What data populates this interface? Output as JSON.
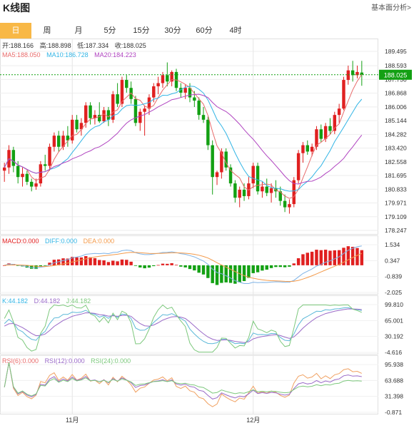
{
  "header": {
    "title": "K线图",
    "link_label": "基本面分析>"
  },
  "tabs": [
    {
      "label": "日",
      "active": true
    },
    {
      "label": "周",
      "active": false
    },
    {
      "label": "月",
      "active": false
    },
    {
      "label": "5分",
      "active": false
    },
    {
      "label": "15分",
      "active": false
    },
    {
      "label": "30分",
      "active": false
    },
    {
      "label": "60分",
      "active": false
    },
    {
      "label": "4时",
      "active": false
    }
  ],
  "ohlc_info": {
    "open_label": "开:",
    "open": "188.166",
    "high_label": "高:",
    "high": "188.898",
    "low_label": "低:",
    "low": "187.334",
    "close_label": "收:",
    "close": "188.025"
  },
  "ma_info": {
    "ma5_label": "MA5:",
    "ma5": "188.050",
    "ma10_label": "MA10:",
    "ma10": "186.728",
    "ma20_label": "MA20:",
    "ma20": "184.223"
  },
  "macd_info": {
    "macd_label": "MACD:",
    "macd": "0.000",
    "diff_label": "DIFF:",
    "diff": "0.000",
    "dea_label": "DEA:",
    "dea": "0.000"
  },
  "kdj_info": {
    "k_label": "K:",
    "k": "44.182",
    "d_label": "D:",
    "d": "44.182",
    "j_label": "J:",
    "j": "44.182"
  },
  "rsi_info": {
    "rsi6_label": "RSI(6):",
    "rsi6": "0.000",
    "rsi12_label": "RSI(12):",
    "rsi12": "0.000",
    "rsi24_label": "RSI(24):",
    "rsi24": "0.000"
  },
  "colors": {
    "up": "#e02020",
    "down": "#13a013",
    "ma5": "#e86a6a",
    "ma10": "#33b5e5",
    "ma20": "#b044c0",
    "macd_diff": "#7fb3e6",
    "macd_dea": "#f39a4a",
    "k": "#5bb8d8",
    "d": "#9a6ac8",
    "j": "#7cc87c",
    "rsi6": "#f0a060",
    "rsi12": "#9a6ac8",
    "rsi24": "#7cc87c",
    "last_price": "#13a013",
    "accent": "#f8b846"
  },
  "chart_data": [
    {
      "type": "candlestick",
      "panel": "price",
      "ylim": [
        178.247,
        189.495
      ],
      "yticks": [
        "189.495",
        "188.593",
        "187.730",
        "186.868",
        "186.006",
        "185.144",
        "184.282",
        "183.420",
        "182.558",
        "181.695",
        "180.833",
        "179.971",
        "179.109",
        "178.247"
      ],
      "xticks": [
        {
          "index": 15,
          "label": "11月"
        },
        {
          "index": 55,
          "label": "12月"
        }
      ],
      "last_price": "188.025",
      "candles": [
        [
          182.0,
          182.5,
          181.3,
          182.2
        ],
        [
          182.2,
          183.6,
          181.8,
          183.3
        ],
        [
          183.3,
          183.5,
          181.9,
          182.3
        ],
        [
          182.3,
          182.6,
          181.2,
          181.6
        ],
        [
          181.6,
          182.2,
          181.0,
          181.8
        ],
        [
          181.8,
          182.0,
          181.1,
          181.3
        ],
        [
          181.3,
          181.5,
          180.7,
          181.0
        ],
        [
          181.0,
          181.5,
          180.8,
          181.2
        ],
        [
          181.2,
          182.6,
          181.0,
          182.4
        ],
        [
          182.4,
          183.0,
          182.0,
          182.3
        ],
        [
          182.3,
          183.7,
          182.0,
          183.5
        ],
        [
          183.5,
          184.4,
          183.2,
          184.2
        ],
        [
          184.2,
          184.5,
          183.2,
          183.5
        ],
        [
          183.5,
          184.5,
          183.3,
          184.2
        ],
        [
          184.2,
          184.8,
          183.5,
          183.9
        ],
        [
          183.9,
          185.5,
          183.7,
          185.2
        ],
        [
          185.2,
          185.5,
          184.4,
          184.6
        ],
        [
          184.6,
          185.3,
          184.2,
          185.0
        ],
        [
          185.0,
          186.3,
          184.7,
          186.1
        ],
        [
          186.1,
          186.3,
          184.9,
          185.3
        ],
        [
          185.3,
          185.8,
          184.9,
          185.5
        ],
        [
          185.5,
          186.3,
          185.0,
          185.1
        ],
        [
          185.1,
          186.0,
          185.0,
          185.8
        ],
        [
          185.8,
          186.0,
          184.8,
          185.2
        ],
        [
          185.2,
          187.0,
          185.0,
          186.8
        ],
        [
          186.8,
          187.5,
          186.0,
          186.2
        ],
        [
          186.2,
          187.9,
          186.0,
          187.7
        ],
        [
          187.7,
          188.0,
          186.9,
          187.2
        ],
        [
          187.2,
          187.6,
          186.2,
          186.5
        ],
        [
          186.5,
          186.7,
          184.8,
          185.0
        ],
        [
          185.0,
          185.9,
          184.5,
          185.7
        ],
        [
          185.7,
          186.1,
          184.2,
          185.9
        ],
        [
          185.9,
          186.8,
          185.5,
          186.6
        ],
        [
          186.6,
          187.5,
          186.3,
          187.3
        ],
        [
          187.3,
          187.9,
          186.8,
          187.5
        ],
        [
          187.5,
          188.2,
          187.2,
          188.0
        ],
        [
          188.0,
          188.8,
          187.3,
          187.6
        ],
        [
          187.6,
          188.3,
          187.3,
          188.2
        ],
        [
          188.2,
          188.4,
          187.0,
          187.2
        ],
        [
          187.2,
          187.5,
          186.6,
          186.9
        ],
        [
          186.9,
          187.4,
          186.5,
          187.2
        ],
        [
          187.2,
          187.5,
          186.3,
          186.6
        ],
        [
          186.6,
          187.0,
          186.0,
          186.4
        ],
        [
          186.4,
          186.6,
          185.2,
          185.5
        ],
        [
          185.5,
          186.0,
          185.0,
          185.2
        ],
        [
          185.2,
          185.4,
          183.3,
          183.6
        ],
        [
          183.6,
          183.9,
          180.5,
          181.6
        ],
        [
          181.6,
          182.0,
          181.1,
          181.9
        ],
        [
          181.9,
          183.4,
          181.5,
          183.2
        ],
        [
          183.2,
          183.4,
          182.0,
          182.2
        ],
        [
          182.2,
          182.4,
          181.0,
          181.2
        ],
        [
          181.2,
          181.4,
          180.0,
          180.3
        ],
        [
          180.3,
          181.0,
          179.7,
          180.8
        ],
        [
          180.8,
          181.2,
          180.1,
          180.4
        ],
        [
          180.4,
          181.6,
          180.2,
          181.2
        ],
        [
          181.2,
          182.5,
          180.9,
          182.3
        ],
        [
          182.3,
          182.5,
          180.5,
          180.7
        ],
        [
          180.7,
          181.3,
          180.3,
          181.0
        ],
        [
          181.0,
          181.5,
          180.4,
          180.6
        ],
        [
          180.6,
          181.2,
          180.0,
          180.9
        ],
        [
          180.9,
          181.4,
          180.3,
          180.7
        ],
        [
          180.7,
          181.0,
          179.8,
          180.1
        ],
        [
          180.1,
          180.5,
          179.4,
          179.7
        ],
        [
          179.7,
          180.2,
          179.3,
          179.9
        ],
        [
          179.9,
          181.6,
          179.7,
          181.4
        ],
        [
          181.4,
          183.3,
          181.2,
          183.1
        ],
        [
          183.1,
          183.8,
          182.5,
          183.6
        ],
        [
          183.6,
          183.9,
          183.0,
          183.2
        ],
        [
          183.2,
          183.7,
          182.9,
          183.5
        ],
        [
          183.5,
          184.8,
          183.3,
          184.6
        ],
        [
          184.6,
          184.9,
          183.8,
          184.0
        ],
        [
          184.0,
          185.0,
          183.8,
          184.8
        ],
        [
          184.8,
          185.3,
          184.3,
          184.5
        ],
        [
          184.5,
          185.7,
          184.3,
          185.5
        ],
        [
          185.5,
          186.2,
          185.0,
          185.9
        ],
        [
          185.9,
          187.9,
          185.8,
          187.7
        ],
        [
          187.7,
          188.6,
          187.4,
          188.3
        ],
        [
          188.3,
          188.9,
          187.6,
          188.0
        ],
        [
          188.0,
          188.6,
          187.8,
          188.2
        ],
        [
          188.166,
          188.898,
          187.334,
          188.025
        ]
      ]
    },
    {
      "type": "bar+line",
      "panel": "MACD",
      "yticks": [
        "1.534",
        "0.347",
        "-0.839",
        "-2.025"
      ],
      "ylim": [
        -2.025,
        1.534
      ]
    },
    {
      "type": "line",
      "panel": "KDJ",
      "yticks": [
        "99.810",
        "65.001",
        "30.192",
        "-4.616"
      ],
      "ylim": [
        -4.616,
        99.81
      ]
    },
    {
      "type": "line",
      "panel": "RSI",
      "yticks": [
        "95.938",
        "63.688",
        "31.398",
        "-0.871"
      ],
      "ylim": [
        -0.871,
        95.938
      ]
    }
  ]
}
